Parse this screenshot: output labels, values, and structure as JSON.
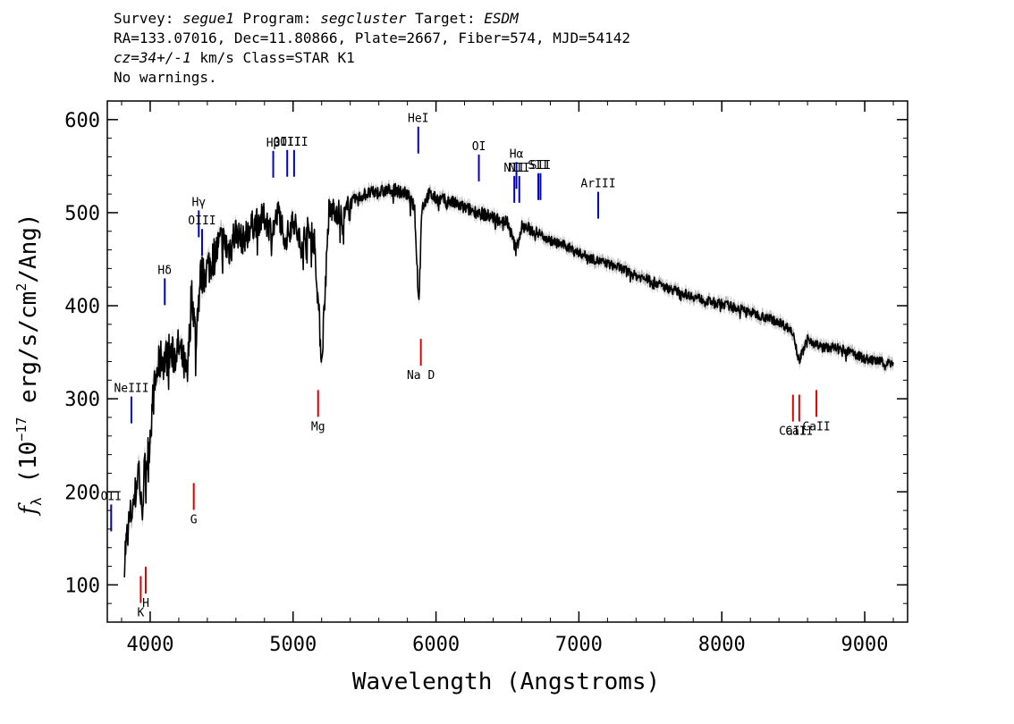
{
  "header": {
    "line1": {
      "survey_label": "Survey: ",
      "survey": "segue1",
      "program_label": " Program: ",
      "program": "segcluster",
      "target_label": " Target: ",
      "target": "ESDM"
    },
    "line2": "RA=133.07016, Dec=11.80866, Plate=2667, Fiber=574, MJD=54142",
    "line3": {
      "cz": "cz=34+/-1",
      "rest": " km/s Class=STAR K1"
    },
    "line4": "No warnings."
  },
  "colors": {
    "spectrum": "#000000",
    "error_band": "#bdbdbd",
    "emission_line": "#0000cc",
    "absorption_line": "#dd0000"
  },
  "chart_data": {
    "type": "line",
    "xlabel": "Wavelength (Angstroms)",
    "ylabel": {
      "f": "f",
      "sub": "λ",
      "mid": " (10",
      "exp1": "−17",
      "mid2": " erg/s/cm",
      "exp2": "2",
      "end": "/Ang)"
    },
    "xlim": [
      3700,
      9300
    ],
    "ylim": [
      60,
      620
    ],
    "x_ticks": [
      4000,
      5000,
      6000,
      7000,
      8000,
      9000
    ],
    "x_tick_labels": [
      "4000",
      "5000",
      "6000",
      "7000",
      "8000",
      "9000"
    ],
    "y_ticks": [
      100,
      200,
      300,
      400,
      500,
      600
    ],
    "y_tick_labels": [
      "100",
      "200",
      "300",
      "400",
      "500",
      "600"
    ],
    "series": [
      {
        "x": [
          3820,
          3850,
          3880,
          3900,
          3920,
          3940,
          3960,
          3990,
          4020,
          4050,
          4080,
          4100,
          4130,
          4160,
          4200,
          4230,
          4260,
          4290,
          4320,
          4350,
          4400,
          4450,
          4500,
          4550,
          4600,
          4650,
          4700,
          4750,
          4800,
          4850,
          4900,
          4950,
          5000,
          5050,
          5100,
          5150,
          5200,
          5250,
          5300,
          5350,
          5400,
          5500,
          5600,
          5700,
          5800,
          5850,
          5880,
          5900,
          5950,
          6000,
          6100,
          6200,
          6300,
          6400,
          6500,
          6560,
          6600,
          6700,
          6800,
          6900,
          7000,
          7100,
          7200,
          7300,
          7400,
          7500,
          7600,
          7700,
          7800,
          7900,
          8000,
          8100,
          8200,
          8300,
          8400,
          8500,
          8540,
          8600,
          8700,
          8800,
          8900,
          9000,
          9100,
          9200
        ],
        "y": [
          130,
          165,
          185,
          200,
          230,
          175,
          220,
          245,
          300,
          330,
          345,
          340,
          350,
          345,
          355,
          340,
          320,
          420,
          360,
          430,
          440,
          455,
          470,
          460,
          480,
          470,
          485,
          490,
          495,
          480,
          500,
          470,
          495,
          465,
          480,
          470,
          340,
          500,
          505,
          490,
          510,
          520,
          522,
          525,
          520,
          505,
          400,
          505,
          520,
          515,
          512,
          505,
          500,
          495,
          490,
          460,
          485,
          480,
          470,
          465,
          457,
          450,
          445,
          440,
          432,
          428,
          420,
          415,
          410,
          405,
          402,
          398,
          393,
          388,
          383,
          372,
          340,
          365,
          355,
          355,
          350,
          343,
          340,
          338
        ]
      }
    ],
    "emission_lines": [
      {
        "label": "Hβ",
        "x": 4861,
        "y": 552
      },
      {
        "label": "OIII",
        "x": 4959,
        "y": 553
      },
      {
        "label": "OIII",
        "x": 5007,
        "y": 553
      },
      {
        "label": "Hγ",
        "x": 4340,
        "y": 488
      },
      {
        "label": "OIII",
        "x": 4363,
        "y": 468
      },
      {
        "label": "Hδ",
        "x": 4102,
        "y": 415
      },
      {
        "label": "NeIII",
        "x": 3869,
        "y": 288
      },
      {
        "label": "OII",
        "x": 3727,
        "y": 172
      },
      {
        "label": "HeI",
        "x": 5876,
        "y": 578
      },
      {
        "label": "OI",
        "x": 6300,
        "y": 548
      },
      {
        "label": "NII",
        "x": 6548,
        "y": 525
      },
      {
        "label": "Hα",
        "x": 6563,
        "y": 540
      },
      {
        "label": "NII",
        "x": 6583,
        "y": 525
      },
      {
        "label": "SII",
        "x": 6716,
        "y": 528
      },
      {
        "label": "SII",
        "x": 6731,
        "y": 528
      },
      {
        "label": "ArIII",
        "x": 7135,
        "y": 508
      }
    ],
    "absorption_lines": [
      {
        "label": "K",
        "x": 3934,
        "y": 95
      },
      {
        "label": "H",
        "x": 3969,
        "y": 105
      },
      {
        "label": "G",
        "x": 4305,
        "y": 195
      },
      {
        "label": "Mg",
        "x": 5175,
        "y": 295
      },
      {
        "label": "Na D",
        "x": 5894,
        "y": 350
      },
      {
        "label": "CaII",
        "x": 8498,
        "y": 290
      },
      {
        "label": "CaII",
        "x": 8542,
        "y": 290
      },
      {
        "label": "CaII",
        "x": 8662,
        "y": 295
      }
    ]
  }
}
